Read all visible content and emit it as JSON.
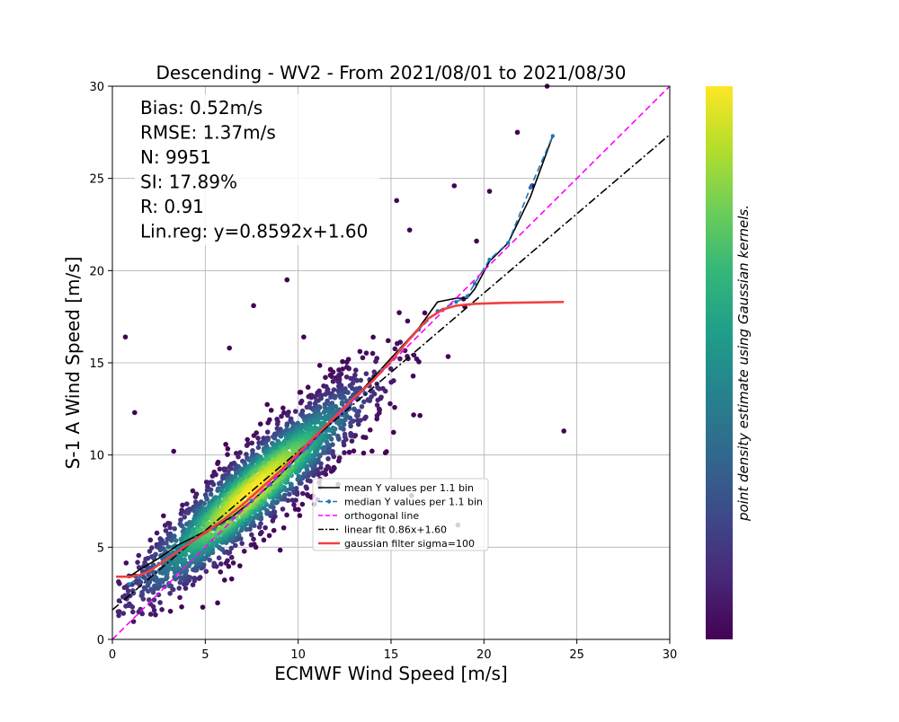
{
  "chart_data": {
    "type": "scatter",
    "title": "Descending - WV2 - From 2021/08/01 to 2021/08/30",
    "xlabel": "ECMWF Wind Speed [m/s]",
    "ylabel": "S-1 A Wind Speed [m/s]",
    "xlim": [
      0,
      30
    ],
    "ylim": [
      0,
      30
    ],
    "xticks": [
      0,
      5,
      10,
      15,
      20,
      25,
      30
    ],
    "yticks": [
      0,
      5,
      10,
      15,
      20,
      25,
      30
    ],
    "grid": true,
    "stats": {
      "bias": "Bias: 0.52m/s",
      "rmse": "RMSE: 1.37m/s",
      "n": "N: 9951",
      "si": "SI: 17.89%",
      "r": "R: 0.91",
      "linreg": "Lin.reg: y=0.8592x+1.60"
    },
    "colorbar_label": "point density estimate using Gaussian kernels.",
    "colormap": [
      "#440154",
      "#482878",
      "#3e4989",
      "#31688e",
      "#26828e",
      "#1f9e89",
      "#35b779",
      "#6ece58",
      "#b5de2b",
      "#fde725"
    ],
    "legend_position": "center-right",
    "scatter_summary": {
      "n": 9951,
      "core_points_x_y": [
        [
          1,
          3
        ],
        [
          2,
          3.5
        ],
        [
          4,
          5
        ],
        [
          6,
          6.5
        ],
        [
          8,
          8.5
        ],
        [
          10,
          10.2
        ],
        [
          12,
          11.8
        ],
        [
          14,
          13.8
        ],
        [
          16,
          15.8
        ],
        [
          18,
          17.8
        ],
        [
          20,
          19.5
        ]
      ],
      "outliers_x_y": [
        [
          0.7,
          16.4
        ],
        [
          1.2,
          12.3
        ],
        [
          3.3,
          10.2
        ],
        [
          6.3,
          15.8
        ],
        [
          7.6,
          18.1
        ],
        [
          9.4,
          19.5
        ],
        [
          10.3,
          16.4
        ],
        [
          15.3,
          23.8
        ],
        [
          16.0,
          22.2
        ],
        [
          18.4,
          24.6
        ],
        [
          19.6,
          21.6
        ],
        [
          21.8,
          27.5
        ],
        [
          23.4,
          30.0
        ],
        [
          20.3,
          24.3
        ],
        [
          22.6,
          24.6
        ],
        [
          24.3,
          11.3
        ],
        [
          18.6,
          6.2
        ],
        [
          16.1,
          7.8
        ]
      ]
    },
    "series": [
      {
        "name": "mean Y values per 1.1 bin",
        "color": "#000000",
        "style": "solid",
        "x": [
          0.9,
          1.5,
          2.5,
          3.5,
          4.5,
          5.5,
          6.5,
          7.5,
          8.5,
          9.5,
          10.5,
          11.5,
          12.5,
          13.5,
          14.5,
          15.5,
          16.5,
          17.5,
          18.5,
          19.1,
          19.5,
          20.3,
          21.3,
          22.5,
          23.7
        ],
        "y": [
          3.4,
          3.8,
          4.4,
          5.1,
          5.6,
          6.1,
          6.7,
          7.5,
          8.4,
          9.4,
          10.5,
          11.5,
          12.6,
          13.6,
          14.7,
          15.8,
          16.9,
          18.3,
          18.5,
          18.5,
          19.0,
          20.5,
          21.5,
          24.0,
          27.3
        ]
      },
      {
        "name": "median Y values per 1.1 bin",
        "color": "#1f77b4",
        "style": "dashed",
        "x": [
          0.9,
          1.5,
          2.5,
          3.5,
          4.5,
          5.5,
          6.5,
          7.5,
          8.5,
          9.5,
          10.5,
          11.5,
          12.5,
          13.5,
          14.5,
          15.5,
          16.5,
          17.5,
          18.5,
          19.1,
          19.5,
          20.3,
          21.3,
          22.5,
          23.7
        ],
        "y": [
          3.0,
          3.4,
          4.1,
          4.9,
          5.5,
          6.0,
          6.6,
          7.5,
          8.4,
          9.4,
          10.4,
          11.4,
          12.5,
          13.5,
          14.6,
          15.7,
          16.8,
          17.8,
          18.3,
          18.6,
          19.3,
          20.6,
          21.5,
          24.5,
          27.3
        ]
      },
      {
        "name": "orthogonal line",
        "color": "#ff00ff",
        "style": "dashed",
        "x": [
          0,
          30
        ],
        "y": [
          0,
          30
        ]
      },
      {
        "name": "linear fit 0.86x+1.60",
        "color": "#000000",
        "style": "dashdot",
        "x": [
          0,
          30
        ],
        "y": [
          1.6,
          27.376
        ]
      },
      {
        "name": "gaussian filter sigma=100",
        "color": "#f04040",
        "style": "solid",
        "x": [
          0.2,
          1,
          1.5,
          2,
          3,
          4,
          5,
          6,
          7,
          8,
          9,
          10,
          11,
          12,
          13,
          14,
          15,
          16,
          17,
          17.8,
          18.5,
          19.5,
          21,
          24.3
        ],
        "y": [
          3.4,
          3.4,
          3.5,
          3.7,
          4.4,
          5.1,
          5.8,
          6.5,
          7.3,
          8.2,
          9.1,
          10.1,
          11.1,
          12.1,
          13.1,
          14.0,
          15.1,
          16.3,
          17.4,
          17.9,
          18.1,
          18.2,
          18.25,
          18.3
        ]
      }
    ]
  }
}
